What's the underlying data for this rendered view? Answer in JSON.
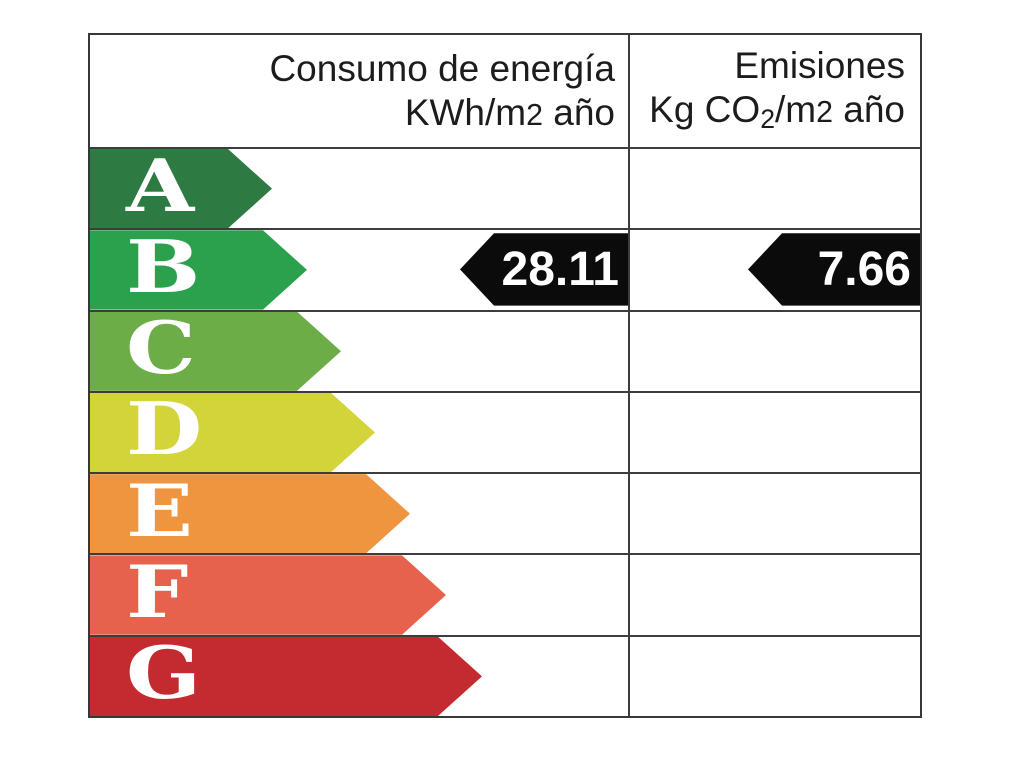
{
  "chart_data": {
    "type": "table",
    "columns": [
      "Consumo de energía KWh/m2 año",
      "Emisiones Kg CO2/m2 año"
    ],
    "ratings": [
      "A",
      "B",
      "C",
      "D",
      "E",
      "F",
      "G"
    ],
    "selected_rating": "B",
    "consumption_kwh_m2_year": 28.11,
    "emissions_kg_co2_m2_year": 7.66,
    "layout": "energy-efficiency-label, arrows lengthen from A to G, black value arrows on row B"
  },
  "header": {
    "consumption": {
      "line1": "Consumo de energía",
      "unit_prefix": "KWh/m",
      "unit_digit": "2",
      "unit_suffix": " año"
    },
    "emissions": {
      "line1": "Emisiones",
      "unit_a": "Kg CO",
      "unit_sub": "2",
      "unit_b": "/m",
      "unit_digit": "2",
      "unit_c": " año"
    }
  },
  "rows": [
    {
      "letter": "A",
      "color": "#2d7a42",
      "arrow_width": 182
    },
    {
      "letter": "B",
      "color": "#2ba14e",
      "arrow_width": 217
    },
    {
      "letter": "C",
      "color": "#6cad47",
      "arrow_width": 251
    },
    {
      "letter": "D",
      "color": "#d3d439",
      "arrow_width": 285
    },
    {
      "letter": "E",
      "color": "#f0953f",
      "arrow_width": 320
    },
    {
      "letter": "F",
      "color": "#e6624c",
      "arrow_width": 356
    },
    {
      "letter": "G",
      "color": "#c42b31",
      "arrow_width": 392
    }
  ],
  "indicator": {
    "color": "#0b0b0b",
    "consumption_value": "28.11",
    "emissions_value": "7.66"
  },
  "colors": {
    "border": "#3d3d3d",
    "header_text": "#1c1c1c",
    "letter_text": "#ffffff",
    "value_text": "#ffffff",
    "background": "#ffffff"
  }
}
